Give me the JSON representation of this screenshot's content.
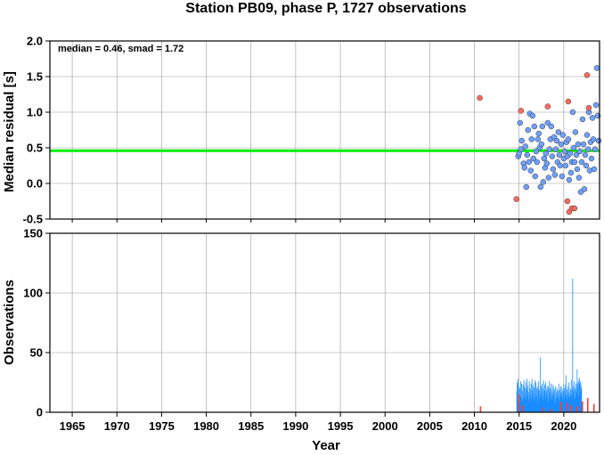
{
  "chart_data": [
    {
      "type": "scatter",
      "title": "Station PB09, phase P, 1727 observations",
      "ylabel": "Median residual [s]",
      "annotation": "median = 0.46, smad = 1.72",
      "xlim": [
        1962.5,
        2024.0
      ],
      "ylim": [
        -0.5,
        2.0
      ],
      "x_ticks": [
        1965,
        1970,
        1975,
        1980,
        1985,
        1990,
        1995,
        2000,
        2005,
        2010,
        2015,
        2020
      ],
      "y_ticks": [
        "-0.5",
        "0.0",
        "0.5",
        "1.0",
        "1.5",
        "2.0"
      ],
      "median_line": 0.46,
      "median_line_color": "#00ee00",
      "grid": true,
      "series": [
        {
          "color": "#6fa0ff",
          "points": [
            [
              2014.9,
              0.38
            ],
            [
              2015.0,
              0.42
            ],
            [
              2015.1,
              0.85
            ],
            [
              2015.2,
              0.48
            ],
            [
              2015.3,
              0.6
            ],
            [
              2015.5,
              0.28
            ],
            [
              2015.6,
              0.22
            ],
            [
              2015.7,
              0.52
            ],
            [
              2015.8,
              -0.05
            ],
            [
              2015.9,
              0.4
            ],
            [
              2016.0,
              0.75
            ],
            [
              2016.1,
              0.3
            ],
            [
              2016.2,
              0.98
            ],
            [
              2016.3,
              0.18
            ],
            [
              2016.4,
              0.62
            ],
            [
              2016.5,
              0.95
            ],
            [
              2016.6,
              0.35
            ],
            [
              2016.7,
              0.8
            ],
            [
              2016.8,
              0.1
            ],
            [
              2016.9,
              0.45
            ],
            [
              2017.0,
              0.3
            ],
            [
              2017.1,
              0.62
            ],
            [
              2017.2,
              0.7
            ],
            [
              2017.3,
              0.5
            ],
            [
              2017.4,
              -0.05
            ],
            [
              2017.5,
              0.55
            ],
            [
              2017.6,
              0.8
            ],
            [
              2017.7,
              0.02
            ],
            [
              2017.8,
              0.35
            ],
            [
              2017.9,
              0.22
            ],
            [
              2018.0,
              0.42
            ],
            [
              2018.1,
              0.28
            ],
            [
              2018.2,
              0.85
            ],
            [
              2018.3,
              0.08
            ],
            [
              2018.4,
              0.48
            ],
            [
              2018.5,
              0.62
            ],
            [
              2018.6,
              0.8
            ],
            [
              2018.7,
              0.38
            ],
            [
              2018.8,
              0.2
            ],
            [
              2018.9,
              0.65
            ],
            [
              2019.0,
              0.12
            ],
            [
              2019.1,
              0.48
            ],
            [
              2019.2,
              0.6
            ],
            [
              2019.3,
              0.3
            ],
            [
              2019.4,
              0.72
            ],
            [
              2019.5,
              0.4
            ],
            [
              2019.6,
              0.25
            ],
            [
              2019.7,
              0.55
            ],
            [
              2019.8,
              0.1
            ],
            [
              2019.9,
              0.68
            ],
            [
              2020.0,
              0.35
            ],
            [
              2020.1,
              0.45
            ],
            [
              2020.2,
              0.25
            ],
            [
              2020.3,
              0.58
            ],
            [
              2020.4,
              0.38
            ],
            [
              2020.5,
              0.62
            ],
            [
              2020.6,
              0.05
            ],
            [
              2020.7,
              0.42
            ],
            [
              2020.8,
              0.15
            ],
            [
              2020.9,
              0.3
            ],
            [
              2021.0,
              1.0
            ],
            [
              2021.1,
              0.5
            ],
            [
              2021.2,
              0.3
            ],
            [
              2021.3,
              0.72
            ],
            [
              2021.4,
              0.4
            ],
            [
              2021.5,
              0.2
            ],
            [
              2021.6,
              0.55
            ],
            [
              2021.7,
              0.08
            ],
            [
              2021.8,
              0.45
            ],
            [
              2021.9,
              -0.12
            ],
            [
              2022.0,
              0.3
            ],
            [
              2022.1,
              0.9
            ],
            [
              2022.2,
              0.55
            ],
            [
              2022.3,
              -0.08
            ],
            [
              2022.4,
              0.4
            ],
            [
              2022.5,
              0.25
            ],
            [
              2022.6,
              0.68
            ],
            [
              2022.7,
              0.48
            ],
            [
              2022.8,
              1.0
            ],
            [
              2022.9,
              0.18
            ],
            [
              2023.0,
              0.58
            ],
            [
              2023.1,
              0.35
            ],
            [
              2023.2,
              0.92
            ],
            [
              2023.3,
              0.62
            ],
            [
              2023.4,
              0.2
            ],
            [
              2023.5,
              0.48
            ],
            [
              2023.6,
              1.1
            ],
            [
              2023.7,
              1.62
            ],
            [
              2023.8,
              0.95
            ],
            [
              2023.9,
              0.6
            ]
          ]
        },
        {
          "color": "#ff6a5e",
          "points": [
            [
              2010.6,
              1.2
            ],
            [
              2014.7,
              -0.22
            ],
            [
              2015.2,
              1.02
            ],
            [
              2018.2,
              1.08
            ],
            [
              2020.5,
              1.15
            ],
            [
              2020.4,
              -0.25
            ],
            [
              2020.6,
              -0.4
            ],
            [
              2020.9,
              -0.35
            ],
            [
              2021.2,
              -0.35
            ],
            [
              2022.6,
              1.52
            ],
            [
              2022.8,
              1.06
            ]
          ]
        }
      ]
    },
    {
      "type": "bar",
      "ylabel": "Observations",
      "xlabel": "Year",
      "xlim": [
        1962.5,
        2024.0
      ],
      "ylim": [
        0,
        150
      ],
      "x_ticks": [
        1965,
        1970,
        1975,
        1980,
        1985,
        1990,
        1995,
        2000,
        2005,
        2010,
        2015,
        2020
      ],
      "y_ticks": [
        "0",
        "50",
        "100",
        "150"
      ],
      "grid": true,
      "series": [
        {
          "color": "#1a8cff",
          "start": 2014.7,
          "step": 0.05,
          "values": [
            18,
            25,
            10,
            28,
            15,
            22,
            8,
            20,
            14,
            26,
            12,
            24,
            9,
            18,
            23,
            11,
            27,
            16,
            21,
            13,
            25,
            10,
            19,
            28,
            14,
            22,
            9,
            17,
            26,
            12,
            20,
            15,
            24,
            11,
            28,
            18,
            13,
            23,
            10,
            21,
            16,
            27,
            12,
            25,
            14,
            20,
            8,
            22,
            18,
            26,
            11,
            19,
            15,
            46,
            13,
            22,
            17,
            24,
            10,
            20,
            27,
            14,
            18,
            23,
            11,
            25,
            16,
            19,
            13,
            22,
            9,
            21,
            17,
            26,
            12,
            20,
            15,
            24,
            10,
            18,
            23,
            14,
            16,
            21,
            11,
            19,
            8,
            22,
            13,
            17,
            20,
            12,
            18,
            15,
            24,
            10,
            19,
            13,
            22,
            16,
            14,
            21,
            11,
            18,
            17,
            24,
            12,
            20,
            15,
            23,
            31,
            14,
            19,
            11,
            22,
            16,
            13,
            25,
            18,
            12,
            20,
            15,
            27,
            13,
            19,
            112,
            17,
            22,
            14,
            26,
            11,
            20,
            18,
            24,
            16,
            36,
            21,
            25,
            13,
            27,
            29,
            24,
            17,
            26,
            22,
            20
          ]
        },
        {
          "color": "#ff3b30",
          "points": [
            [
              2010.6,
              5
            ],
            [
              2014.9,
              15
            ],
            [
              2015.3,
              6
            ],
            [
              2017.6,
              4
            ],
            [
              2018.5,
              3
            ],
            [
              2019.6,
              9
            ],
            [
              2020.3,
              8
            ],
            [
              2020.7,
              6
            ],
            [
              2021.4,
              5
            ],
            [
              2022.0,
              9
            ],
            [
              2022.6,
              12
            ],
            [
              2023.3,
              7
            ]
          ]
        }
      ]
    }
  ]
}
